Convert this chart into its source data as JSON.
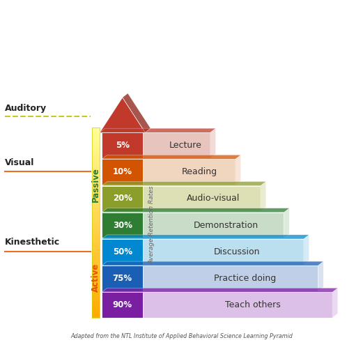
{
  "caption": "Adapted from the NTL Institute of Applied Behavioral Science Learning Pyramid",
  "layers": [
    {
      "pct": "5%",
      "label": "Lecture",
      "color": "#c0392b",
      "shade": "#e8c4bf",
      "label_color": "#333333"
    },
    {
      "pct": "10%",
      "label": "Reading",
      "color": "#d35400",
      "shade": "#f0d5bf",
      "label_color": "#333333"
    },
    {
      "pct": "20%",
      "label": "Audio-visual",
      "color": "#8c9e2a",
      "shade": "#dde0b5",
      "label_color": "#333333"
    },
    {
      "pct": "30%",
      "label": "Demonstration",
      "color": "#2e7d32",
      "shade": "#c8dcc8",
      "label_color": "#333333"
    },
    {
      "pct": "50%",
      "label": "Discussion",
      "color": "#0288d1",
      "shade": "#bcdff0",
      "label_color": "#333333"
    },
    {
      "pct": "75%",
      "label": "Practice doing",
      "color": "#1a5fb4",
      "shade": "#c0cfe8",
      "label_color": "#333333"
    },
    {
      "pct": "90%",
      "label": "Teach others",
      "color": "#7b1fa2",
      "shade": "#dcc0e8",
      "label_color": "#333333"
    }
  ],
  "passive_label": "Passive",
  "active_label": "Active",
  "retention_label": "Average Retention Rates",
  "auditory_label": "Auditory",
  "visual_label": "Visual",
  "kinesthetic_label": "Kinesthetic",
  "passive_color": "#2e7d32",
  "active_color": "#e65100",
  "auditory_line_color": "#c8b400",
  "visual_line_color": "#e87020",
  "kinesthetic_line_color": "#e87020",
  "bg_color": "#ffffff",
  "tri_color": "#c0392b",
  "tri_dark": "#922b21"
}
